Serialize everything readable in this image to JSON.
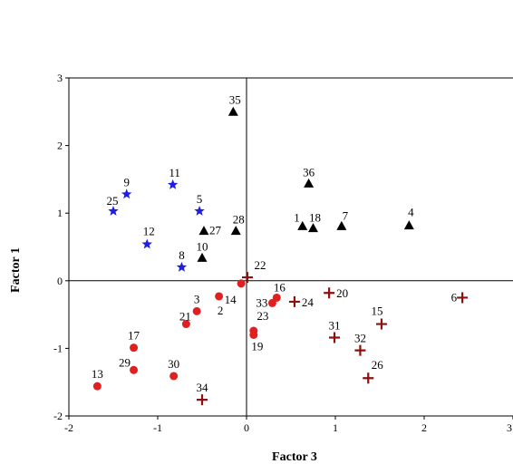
{
  "chart_data": {
    "type": "scatter",
    "xlabel": "Factor 3",
    "ylabel": "Factor 1",
    "xlim": [
      -2,
      3
    ],
    "ylim": [
      -2,
      3
    ],
    "xticks": [
      -2,
      -1,
      0,
      1,
      2,
      3
    ],
    "yticks": [
      -2,
      -1,
      0,
      1,
      2,
      3
    ],
    "grid": false,
    "zero_lines": true,
    "series": [
      {
        "marker": "star",
        "color": "#1f1fe0",
        "points": [
          {
            "label": "9",
            "x": -1.35,
            "y": 1.28
          },
          {
            "label": "11",
            "x": -0.83,
            "y": 1.42
          },
          {
            "label": "25",
            "x": -1.5,
            "y": 1.03
          },
          {
            "label": "5",
            "x": -0.53,
            "y": 1.03
          },
          {
            "label": "12",
            "x": -1.12,
            "y": 0.54
          },
          {
            "label": "8",
            "x": -0.73,
            "y": 0.2
          }
        ]
      },
      {
        "marker": "triangle",
        "color": "#000000",
        "points": [
          {
            "label": "35",
            "x": -0.15,
            "y": 2.5
          },
          {
            "label": "36",
            "x": 0.7,
            "y": 1.44
          },
          {
            "label": "4",
            "x": 1.83,
            "y": 0.82
          },
          {
            "label": "1",
            "x": 0.63,
            "y": 0.81
          },
          {
            "label": "18",
            "x": 0.75,
            "y": 0.78
          },
          {
            "label": "7",
            "x": 1.07,
            "y": 0.81
          },
          {
            "label": "28",
            "x": -0.12,
            "y": 0.74
          },
          {
            "label": "27",
            "x": -0.48,
            "y": 0.74
          },
          {
            "label": "10",
            "x": -0.5,
            "y": 0.34
          }
        ]
      },
      {
        "marker": "circle",
        "color": "#e02020",
        "points": [
          {
            "label": "14",
            "x": -0.31,
            "y": -0.23
          },
          {
            "label": "3",
            "x": -0.56,
            "y": -0.45
          },
          {
            "label": "21",
            "x": -0.68,
            "y": -0.64
          },
          {
            "label": "2",
            "x": -0.06,
            "y": -0.04
          },
          {
            "label": "16",
            "x": 0.34,
            "y": -0.25
          },
          {
            "label": "33",
            "x": 0.29,
            "y": -0.33
          },
          {
            "label": "23",
            "x": 0.08,
            "y": -0.74
          },
          {
            "label": "19",
            "x": 0.08,
            "y": -0.8
          },
          {
            "label": "17",
            "x": -1.27,
            "y": -0.99
          },
          {
            "label": "29",
            "x": -1.27,
            "y": -1.32
          },
          {
            "label": "30",
            "x": -0.82,
            "y": -1.41
          },
          {
            "label": "13",
            "x": -1.68,
            "y": -1.56
          }
        ]
      },
      {
        "marker": "plus",
        "color": "#8b1010",
        "points": [
          {
            "label": "22",
            "x": 0.01,
            "y": 0.05
          },
          {
            "label": "24",
            "x": 0.54,
            "y": -0.31
          },
          {
            "label": "20",
            "x": 0.93,
            "y": -0.18
          },
          {
            "label": "6",
            "x": 2.43,
            "y": -0.25
          },
          {
            "label": "15",
            "x": 1.52,
            "y": -0.64
          },
          {
            "label": "31",
            "x": 0.99,
            "y": -0.84
          },
          {
            "label": "32",
            "x": 1.28,
            "y": -1.03
          },
          {
            "label": "26",
            "x": 1.37,
            "y": -1.44
          },
          {
            "label": "34",
            "x": -0.5,
            "y": -1.76
          }
        ]
      }
    ]
  }
}
